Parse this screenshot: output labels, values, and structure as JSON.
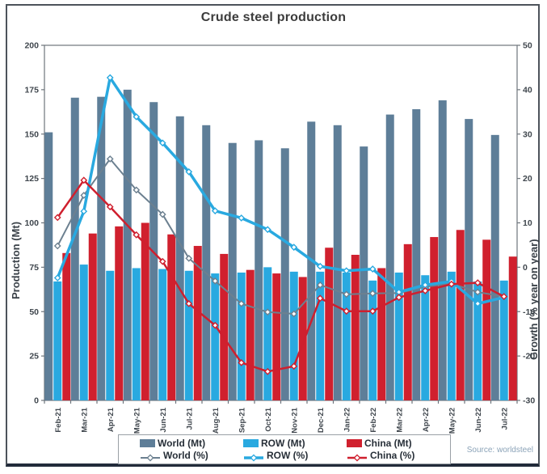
{
  "chart_data": {
    "type": "combo-bar-line",
    "title": "Crude steel production",
    "source": "Source: worldsteel",
    "grid": false,
    "legend_position": "bottom",
    "categories": [
      "Feb-21",
      "Mar-21",
      "Apr-21",
      "May-21",
      "Jun-21",
      "Jul-21",
      "Aug-21",
      "Sep-21",
      "Oct-21",
      "Nov-21",
      "Dec-21",
      "Jan-22",
      "Feb-22",
      "Mar-22",
      "Apr-22",
      "May-22",
      "Jun-22",
      "Jul-22"
    ],
    "left_axis": {
      "label": "Production (Mt)",
      "min": 0,
      "max": 200,
      "tick_step": 25
    },
    "right_axis": {
      "label": "Growth (% year on year)",
      "min": -30,
      "max": 50,
      "tick_step": 10
    },
    "bar_series": [
      {
        "name": "World (Mt)",
        "axis": "left",
        "color": "#5e7e98",
        "values": [
          151,
          170.5,
          171,
          175,
          168,
          160,
          155,
          145,
          146.5,
          142,
          157,
          155,
          143,
          161,
          164,
          169,
          158.5,
          149.5
        ]
      },
      {
        "name": "ROW (Mt)",
        "axis": "left",
        "color": "#29a9e0",
        "values": [
          67,
          76.5,
          73,
          74.5,
          74,
          73,
          71.5,
          72,
          75,
          72.5,
          72.5,
          72,
          67.5,
          72,
          70.5,
          72.5,
          67,
          67.5
        ]
      },
      {
        "name": "China (Mt)",
        "axis": "left",
        "color": "#d0202e",
        "values": [
          83,
          94,
          98,
          100,
          93.5,
          87,
          82.5,
          73.5,
          71.5,
          69.5,
          86,
          82,
          74.5,
          88,
          92,
          96,
          90.5,
          81
        ]
      }
    ],
    "line_series": [
      {
        "name": "World (%)",
        "axis": "right",
        "color": "#6c8090",
        "width": 2,
        "values": [
          4.8,
          16.2,
          24.4,
          17.4,
          11.9,
          2.0,
          -3.1,
          -8.2,
          -10.1,
          -10.5,
          -4.0,
          -6.1,
          -5.9,
          -5.8,
          -4.4,
          -3.7,
          -5.6,
          -6.6
        ]
      },
      {
        "name": "ROW (%)",
        "axis": "right",
        "color": "#29a9e0",
        "width": 3.5,
        "values": [
          -2.4,
          12.6,
          42.7,
          33.9,
          28.0,
          21.5,
          12.7,
          11.1,
          8.5,
          4.5,
          0.2,
          -0.8,
          -0.4,
          -5.6,
          -4.0,
          -3.2,
          -8.2,
          -6.8
        ]
      },
      {
        "name": "China (%)",
        "axis": "right",
        "color": "#cf1f2e",
        "width": 2.5,
        "values": [
          11.2,
          19.6,
          13.6,
          7.3,
          1.3,
          -8.2,
          -13.1,
          -21.5,
          -23.5,
          -22.3,
          -7.0,
          -9.9,
          -9.9,
          -6.8,
          -5.3,
          -3.8,
          -3.5,
          -6.6
        ]
      }
    ]
  }
}
